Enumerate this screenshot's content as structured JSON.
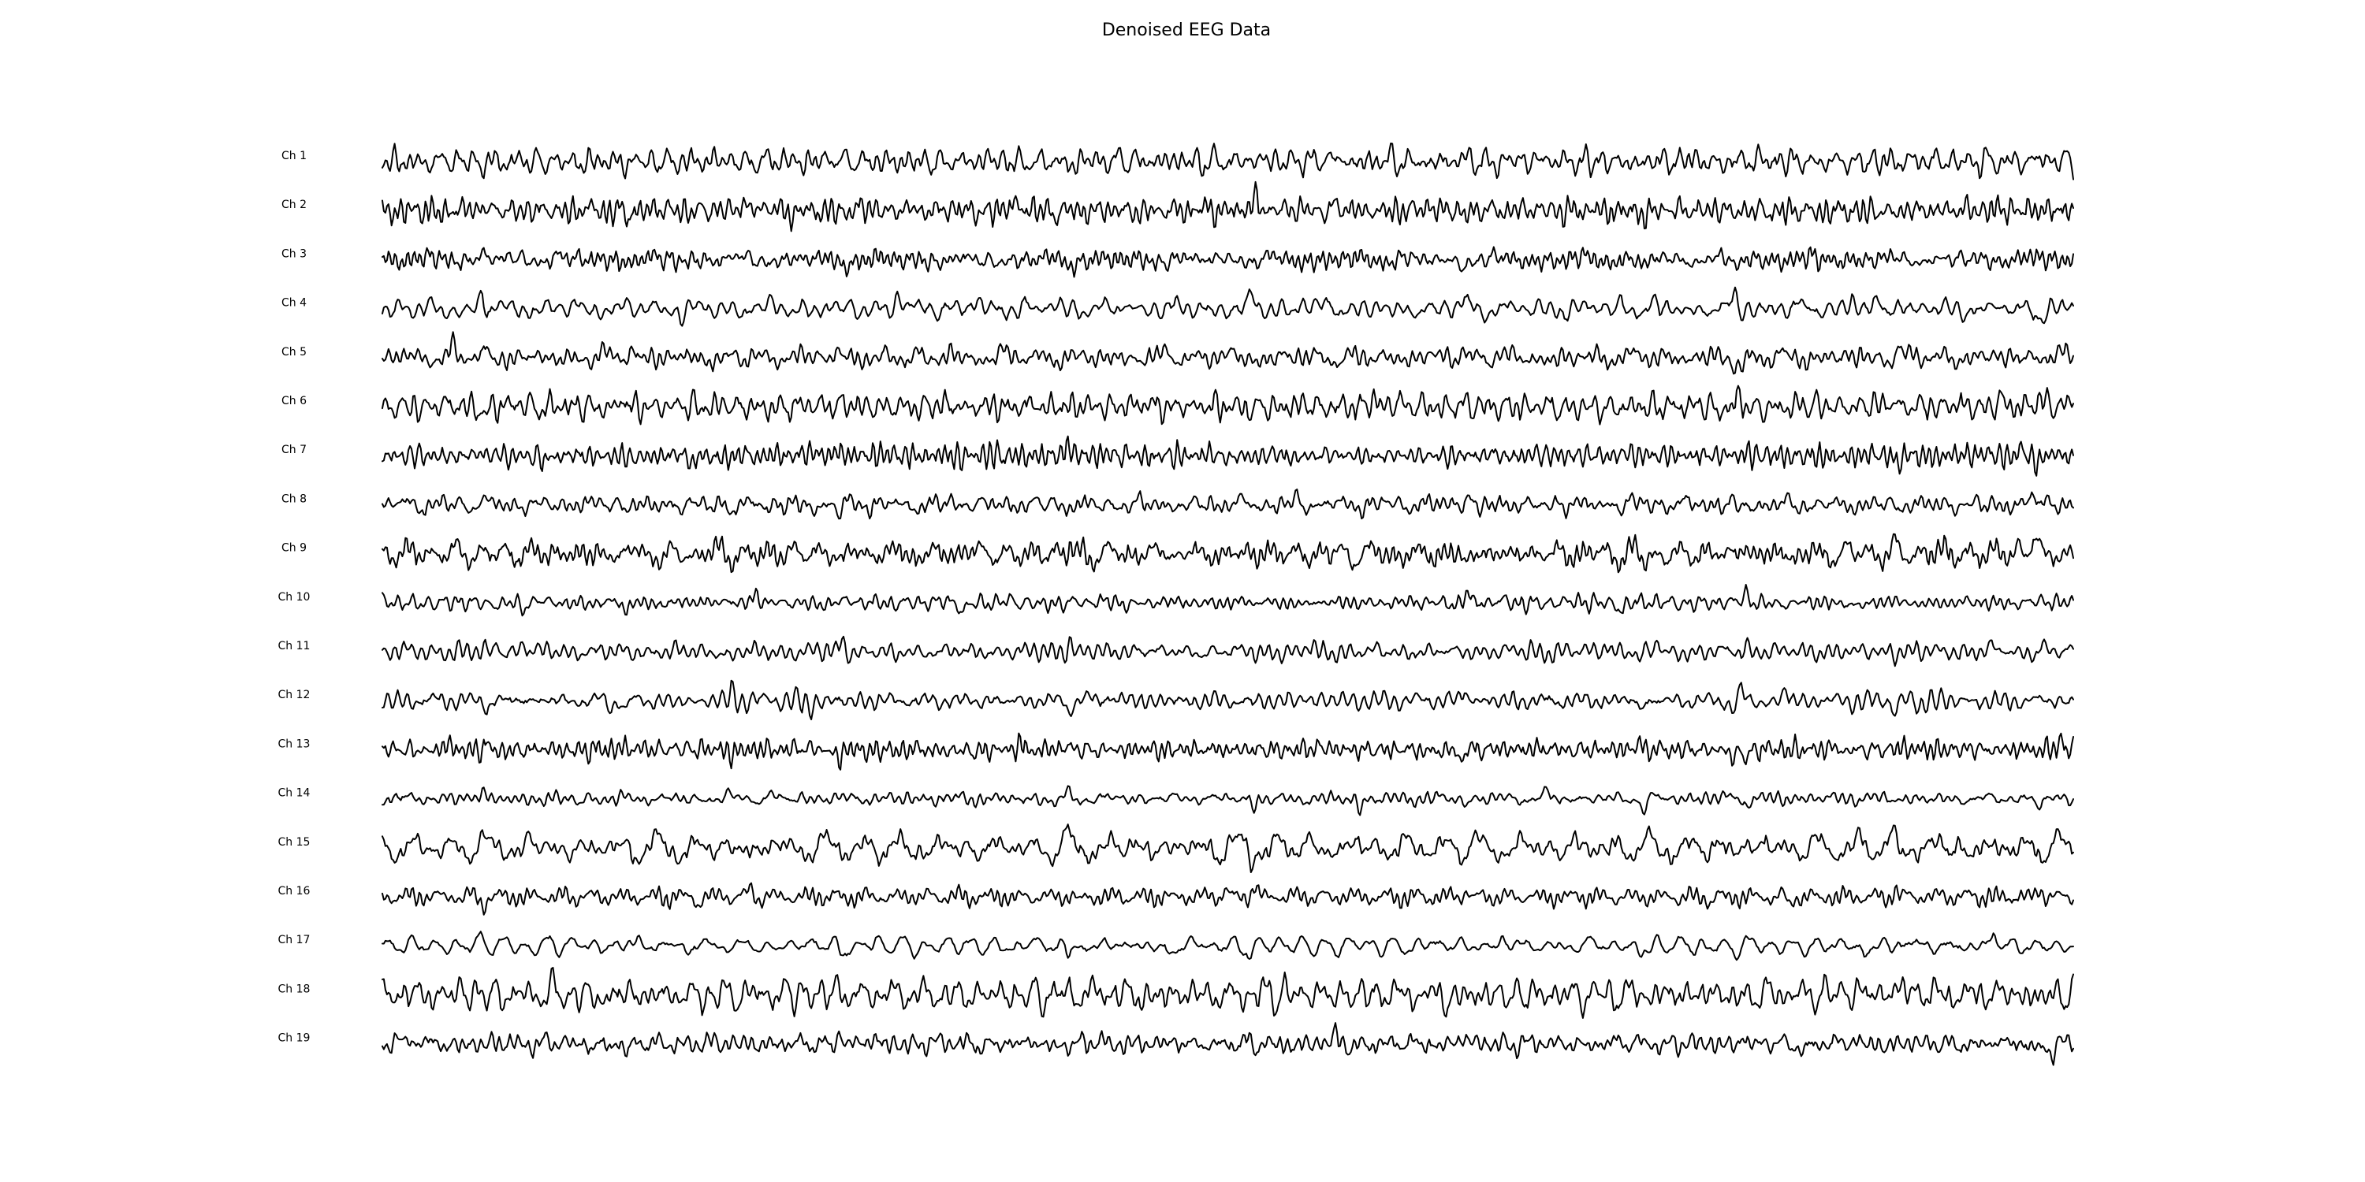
{
  "chart_data": {
    "type": "line",
    "title": "Denoised EEG Data",
    "xlabel": "",
    "ylabel": "",
    "grid": false,
    "legend": "none",
    "axes_visible": false,
    "series": [
      {
        "name": "Ch 1"
      },
      {
        "name": "Ch 2"
      },
      {
        "name": "Ch 3"
      },
      {
        "name": "Ch 4"
      },
      {
        "name": "Ch 5"
      },
      {
        "name": "Ch 6"
      },
      {
        "name": "Ch 7"
      },
      {
        "name": "Ch 8"
      },
      {
        "name": "Ch 9"
      },
      {
        "name": "Ch 10"
      },
      {
        "name": "Ch 11"
      },
      {
        "name": "Ch 12"
      },
      {
        "name": "Ch 13"
      },
      {
        "name": "Ch 14"
      },
      {
        "name": "Ch 15"
      },
      {
        "name": "Ch 16"
      },
      {
        "name": "Ch 17"
      },
      {
        "name": "Ch 18"
      },
      {
        "name": "Ch 19"
      }
    ],
    "trace_color": "#000000"
  }
}
